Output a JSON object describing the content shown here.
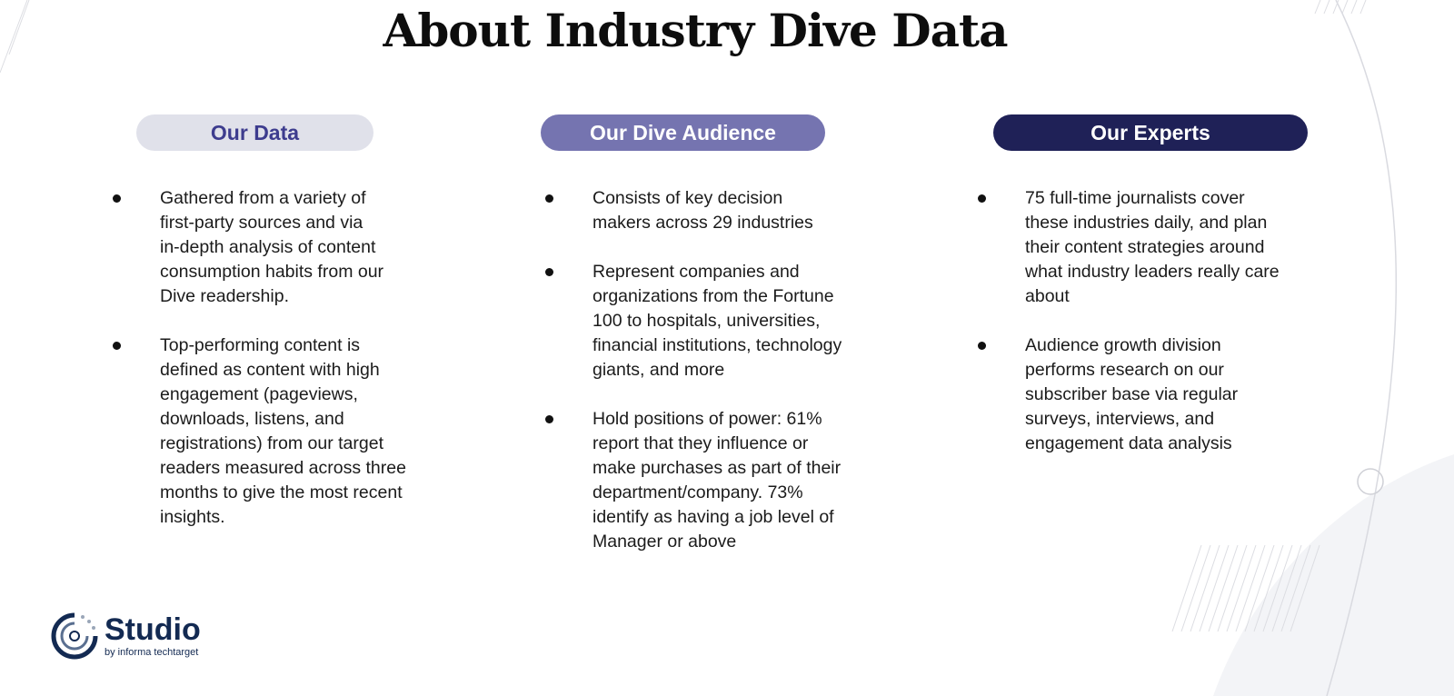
{
  "title": "About Industry Dive Data",
  "columns": [
    {
      "heading": "Our Data",
      "bullets": [
        "Gathered from a variety of\nfirst-party sources and via\nin-depth analysis of content\nconsumption habits from our\nDive readership.",
        "Top-performing content is\ndefined as content with high\nengagement (pageviews,\ndownloads, listens, and\nregistrations) from our target\nreaders measured across three\nmonths to give the most recent\ninsights."
      ]
    },
    {
      "heading": "Our Dive Audience",
      "bullets": [
        "Consists of key decision\nmakers  across 29 industries",
        "Represent companies and\norganizations from the Fortune\n100 to hospitals, universities,\nfinancial institutions, technology\ngiants, and more",
        "Hold positions of power: 61%\nreport that they influence or\nmake purchases as part of their\ndepartment/company. 73%\nidentify as having a job level of\nManager  or above"
      ]
    },
    {
      "heading": "Our Experts",
      "bullets": [
        "75 full-time journalists cover\nthese industries daily, and plan\ntheir content strategies around\nwhat industry leaders really care\nabout",
        "Audience growth division\nperforms research on our\nsubscriber base via regular\nsurveys, interviews, and\nengagement data analysis"
      ]
    }
  ],
  "logo": {
    "name": "Studio",
    "tagline": "by informa techtarget"
  },
  "colors": {
    "pill1": "#e0e1ea",
    "pill2": "#7574b0",
    "pill3": "#1f2157",
    "logo": "#132a52"
  }
}
